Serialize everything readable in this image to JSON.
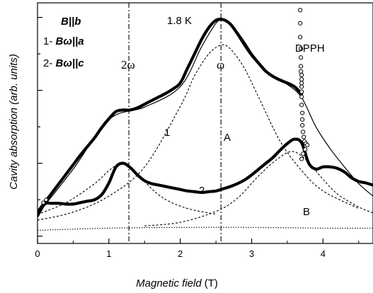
{
  "chart_data": {
    "type": "line",
    "title": "",
    "xlabel": "Magnetic field",
    "xlabel_unit": "(T)",
    "ylabel": "Cavity absorption (arb. units)",
    "xlim": [
      0,
      4.7
    ],
    "ylim": [
      -0.1,
      3.2
    ],
    "x_ticks": [
      0,
      1,
      2,
      3,
      4
    ],
    "x_tick_labels": [
      "0",
      "1",
      "2",
      "3",
      "4"
    ],
    "y_tick_labels_shown": false,
    "grid": false,
    "legend": "none",
    "annotations": {
      "temperature": "1.8 K",
      "condition_main": "B||b",
      "condition_1_prefix": "1- ",
      "condition_1": "Bω||a",
      "condition_2_prefix": "2- ",
      "condition_2": "Bω||c",
      "curve_label_1": "1",
      "curve_label_2": "2",
      "peak_label_A": "A",
      "peak_label_B": "B",
      "dpph_label": "DPPH",
      "line_2w_label": "2ω",
      "line_w_label": "ω"
    },
    "vertical_lines": [
      {
        "label": "2ω",
        "x": 1.28
      },
      {
        "label": "ω",
        "x": 2.57
      }
    ],
    "series": [
      {
        "id": "1",
        "style": "thick-solid",
        "x": [
          0.0,
          0.1,
          0.2,
          0.3,
          0.4,
          0.5,
          0.6,
          0.7,
          0.8,
          0.9,
          1.0,
          1.1,
          1.2,
          1.3,
          1.4,
          1.5,
          1.6,
          1.7,
          1.8,
          1.9,
          2.0,
          2.1,
          2.2,
          2.3,
          2.4,
          2.5,
          2.6,
          2.7,
          2.8,
          2.9,
          3.0,
          3.1,
          3.2,
          3.3,
          3.4,
          3.5,
          3.6,
          3.7
        ],
        "y": [
          0.33,
          0.46,
          0.59,
          0.72,
          0.85,
          0.98,
          1.11,
          1.23,
          1.35,
          1.49,
          1.61,
          1.71,
          1.73,
          1.73,
          1.76,
          1.81,
          1.86,
          1.91,
          1.96,
          2.02,
          2.1,
          2.3,
          2.5,
          2.7,
          2.86,
          2.96,
          2.97,
          2.91,
          2.78,
          2.64,
          2.49,
          2.37,
          2.26,
          2.19,
          2.14,
          2.1,
          2.05,
          1.95
        ]
      },
      {
        "id": "2",
        "style": "thick-solid",
        "x": [
          0.0,
          0.1,
          0.2,
          0.3,
          0.4,
          0.5,
          0.6,
          0.7,
          0.8,
          0.9,
          1.0,
          1.1,
          1.2,
          1.3,
          1.4,
          1.5,
          1.6,
          1.7,
          1.8,
          1.9,
          2.0,
          2.1,
          2.2,
          2.3,
          2.4,
          2.5,
          2.6,
          2.7,
          2.8,
          2.9,
          3.0,
          3.1,
          3.2,
          3.3,
          3.4,
          3.5,
          3.6,
          3.7,
          3.8,
          3.9,
          4.0,
          4.1,
          4.2,
          4.3,
          4.4,
          4.5,
          4.6,
          4.7
        ],
        "y": [
          0.28,
          0.44,
          0.45,
          0.45,
          0.44,
          0.44,
          0.46,
          0.48,
          0.5,
          0.57,
          0.73,
          0.95,
          1.0,
          0.94,
          0.84,
          0.76,
          0.72,
          0.7,
          0.68,
          0.66,
          0.64,
          0.62,
          0.61,
          0.6,
          0.61,
          0.62,
          0.65,
          0.68,
          0.72,
          0.77,
          0.84,
          0.92,
          1.0,
          1.08,
          1.18,
          1.27,
          1.33,
          1.28,
          1.0,
          0.92,
          0.95,
          0.95,
          0.93,
          0.88,
          0.8,
          0.75,
          0.73,
          0.7
        ]
      },
      {
        "id": "fit",
        "style": "thin-solid",
        "x": [
          0.0,
          0.5,
          1.0,
          1.5,
          2.0,
          2.3,
          2.5,
          2.6,
          2.7,
          3.0,
          3.3,
          3.5,
          3.7,
          3.9,
          4.1,
          4.3,
          4.5,
          4.7
        ],
        "y": [
          0.3,
          0.92,
          1.6,
          1.77,
          2.05,
          2.6,
          2.92,
          2.96,
          2.9,
          2.46,
          2.18,
          2.08,
          1.9,
          1.5,
          1.2,
          0.95,
          0.72,
          0.55
        ]
      },
      {
        "id": "A",
        "style": "dashed",
        "x": [
          0.0,
          0.5,
          1.0,
          1.5,
          2.0,
          2.2,
          2.4,
          2.57,
          2.7,
          2.9,
          3.1,
          3.4,
          3.7,
          4.0,
          4.5
        ],
        "y": [
          0.22,
          0.33,
          0.55,
          0.95,
          1.78,
          2.2,
          2.5,
          2.62,
          2.57,
          2.3,
          1.9,
          1.3,
          0.9,
          0.62,
          0.38
        ]
      },
      {
        "id": "2w-peak",
        "style": "dashed",
        "x": [
          0.0,
          0.4,
          0.8,
          1.0,
          1.15,
          1.25,
          1.4,
          1.6,
          1.8,
          2.1,
          2.5
        ],
        "y": [
          0.3,
          0.46,
          0.72,
          0.9,
          0.99,
          0.97,
          0.86,
          0.65,
          0.5,
          0.38,
          0.3
        ]
      },
      {
        "id": "B",
        "style": "dashed",
        "x": [
          1.5,
          2.0,
          2.5,
          2.8,
          3.1,
          3.35,
          3.55,
          3.7,
          3.85,
          4.0,
          4.2,
          4.5,
          4.7
        ],
        "y": [
          0.14,
          0.19,
          0.34,
          0.52,
          0.83,
          1.05,
          1.16,
          1.1,
          0.95,
          0.78,
          0.58,
          0.4,
          0.32
        ]
      },
      {
        "id": "baseline",
        "style": "dotted",
        "x": [
          0.0,
          1.0,
          2.0,
          3.0,
          4.0,
          4.7
        ],
        "y": [
          0.08,
          0.11,
          0.12,
          0.12,
          0.11,
          0.11
        ]
      },
      {
        "id": "DPPH",
        "style": "open-circles",
        "x": [
          3.68,
          3.68,
          3.68,
          3.69,
          3.69,
          3.69,
          3.69,
          3.7,
          3.7,
          3.7,
          3.7,
          3.7,
          3.7,
          3.7,
          3.71,
          3.71,
          3.71,
          3.72,
          3.73,
          3.74,
          3.76,
          3.78,
          3.75,
          3.72,
          3.7
        ],
        "y": [
          3.1,
          2.92,
          2.73,
          2.57,
          2.45,
          2.33,
          2.26,
          2.21,
          2.15,
          2.1,
          2.05,
          1.98,
          1.91,
          1.8,
          1.69,
          1.6,
          1.52,
          1.43,
          1.36,
          1.3,
          1.27,
          1.25,
          1.19,
          1.13,
          1.06
        ]
      }
    ]
  }
}
